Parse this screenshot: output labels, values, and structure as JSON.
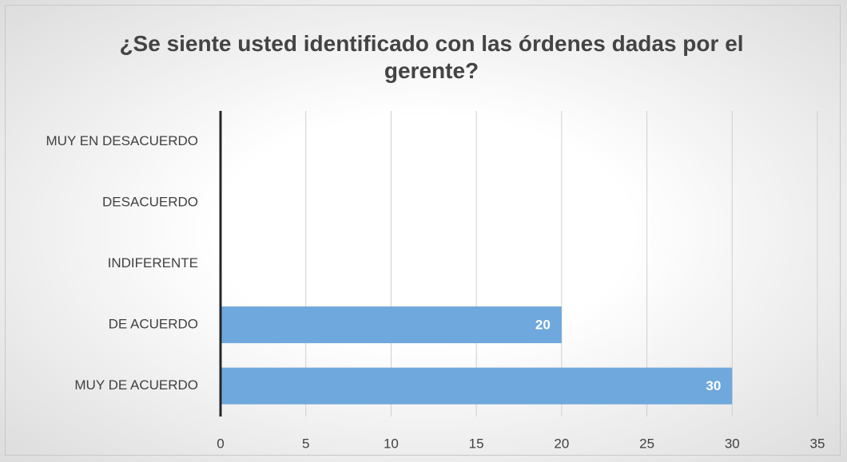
{
  "chart_data": {
    "type": "bar",
    "orientation": "horizontal",
    "title": "¿Se siente usted identificado con las órdenes dadas por el gerente?",
    "categories": [
      "MUY EN DESACUERDO",
      "DESACUERDO",
      "INDIFERENTE",
      "DE ACUERDO",
      "MUY DE ACUERDO"
    ],
    "values": [
      0,
      null,
      null,
      20,
      30
    ],
    "color": "#6fa8dc",
    "xlim": [
      0,
      35
    ],
    "xticks": [
      0,
      5,
      10,
      15,
      20,
      25,
      30,
      35
    ],
    "grid": true
  }
}
